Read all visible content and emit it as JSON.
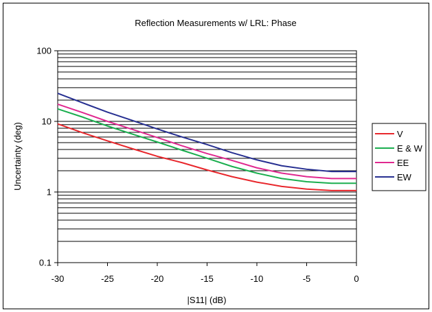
{
  "chart_data": {
    "type": "line",
    "title": "Reflection Measurements w/ LRL: Phase",
    "xlabel": "|S11| (dB)",
    "ylabel": "Uncertainty (deg)",
    "xlim": [
      -30,
      0
    ],
    "ylim": [
      0.1,
      100
    ],
    "yscale": "log",
    "x_ticks": [
      -30,
      -25,
      -20,
      -15,
      -10,
      -5,
      0
    ],
    "y_ticks": [
      0.1,
      1,
      10,
      100
    ],
    "y_tick_labels": [
      "0.1",
      "1",
      "10",
      "100"
    ],
    "grid": "horizontal-log-minor",
    "legend_position": "right",
    "x": [
      -30,
      -27.5,
      -25,
      -22.5,
      -20,
      -17.5,
      -15,
      -12.5,
      -10,
      -7.5,
      -5,
      -2.5,
      0
    ],
    "series": [
      {
        "name": "V",
        "color": "#e8262b",
        "values": [
          9.2,
          6.9,
          5.3,
          4.1,
          3.2,
          2.6,
          2.05,
          1.65,
          1.38,
          1.2,
          1.1,
          1.05,
          1.05
        ]
      },
      {
        "name": "E & W",
        "color": "#1aae4e",
        "values": [
          15.0,
          11.5,
          8.6,
          6.6,
          5.1,
          3.9,
          3.0,
          2.3,
          1.85,
          1.55,
          1.4,
          1.33,
          1.33
        ]
      },
      {
        "name": "EE",
        "color": "#e0288f",
        "values": [
          17.5,
          13.3,
          10.0,
          7.7,
          5.9,
          4.5,
          3.5,
          2.8,
          2.2,
          1.85,
          1.65,
          1.55,
          1.55
        ]
      },
      {
        "name": "EW",
        "color": "#262f91",
        "values": [
          25.0,
          18.3,
          13.5,
          10.3,
          7.8,
          6.0,
          4.7,
          3.6,
          2.85,
          2.35,
          2.1,
          1.95,
          1.95
        ]
      }
    ]
  }
}
